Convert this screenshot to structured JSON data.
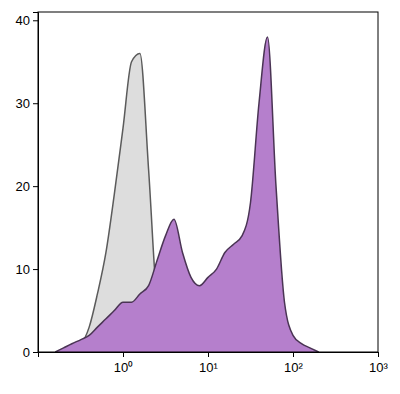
{
  "chart_data": {
    "type": "area",
    "log": "x",
    "x": [
      0.16,
      0.2,
      0.25,
      0.32,
      0.4,
      0.5,
      0.63,
      0.79,
      1,
      1.26,
      1.58,
      2,
      2.51,
      3.16,
      3.98,
      5.01,
      6.31,
      7.94,
      10,
      12.6,
      15.8,
      20,
      25.1,
      31.6,
      39.8,
      50.1,
      63.1,
      79.4,
      100,
      126,
      158,
      200
    ],
    "series": [
      {
        "color": "#dddddd",
        "values": [
          0,
          0,
          0.5,
          1,
          3,
          7,
          12,
          19,
          27,
          35,
          36,
          22,
          6,
          1,
          0,
          0,
          0,
          0,
          0,
          0,
          0,
          0,
          0,
          0,
          0,
          0,
          0,
          0,
          0,
          0,
          0,
          0
        ]
      },
      {
        "color": "#b57fcc",
        "values": [
          0,
          0.5,
          1,
          1.5,
          2,
          3,
          4,
          5,
          6,
          6,
          7,
          8,
          11,
          14,
          16,
          12,
          9,
          8,
          9,
          10,
          12,
          13,
          14,
          18,
          30,
          38,
          20,
          6,
          2,
          1,
          0.5,
          0
        ]
      }
    ],
    "xlim": [
      0.1,
      1000
    ],
    "xticks": [
      {
        "value": 1,
        "label": "10⁰"
      },
      {
        "value": 10,
        "label": "10¹"
      },
      {
        "value": 100,
        "label": "10²"
      },
      {
        "value": 1000,
        "label": "10³"
      }
    ],
    "ylim": [
      0,
      41
    ],
    "yticks": [
      0,
      10,
      20,
      30,
      40
    ]
  }
}
